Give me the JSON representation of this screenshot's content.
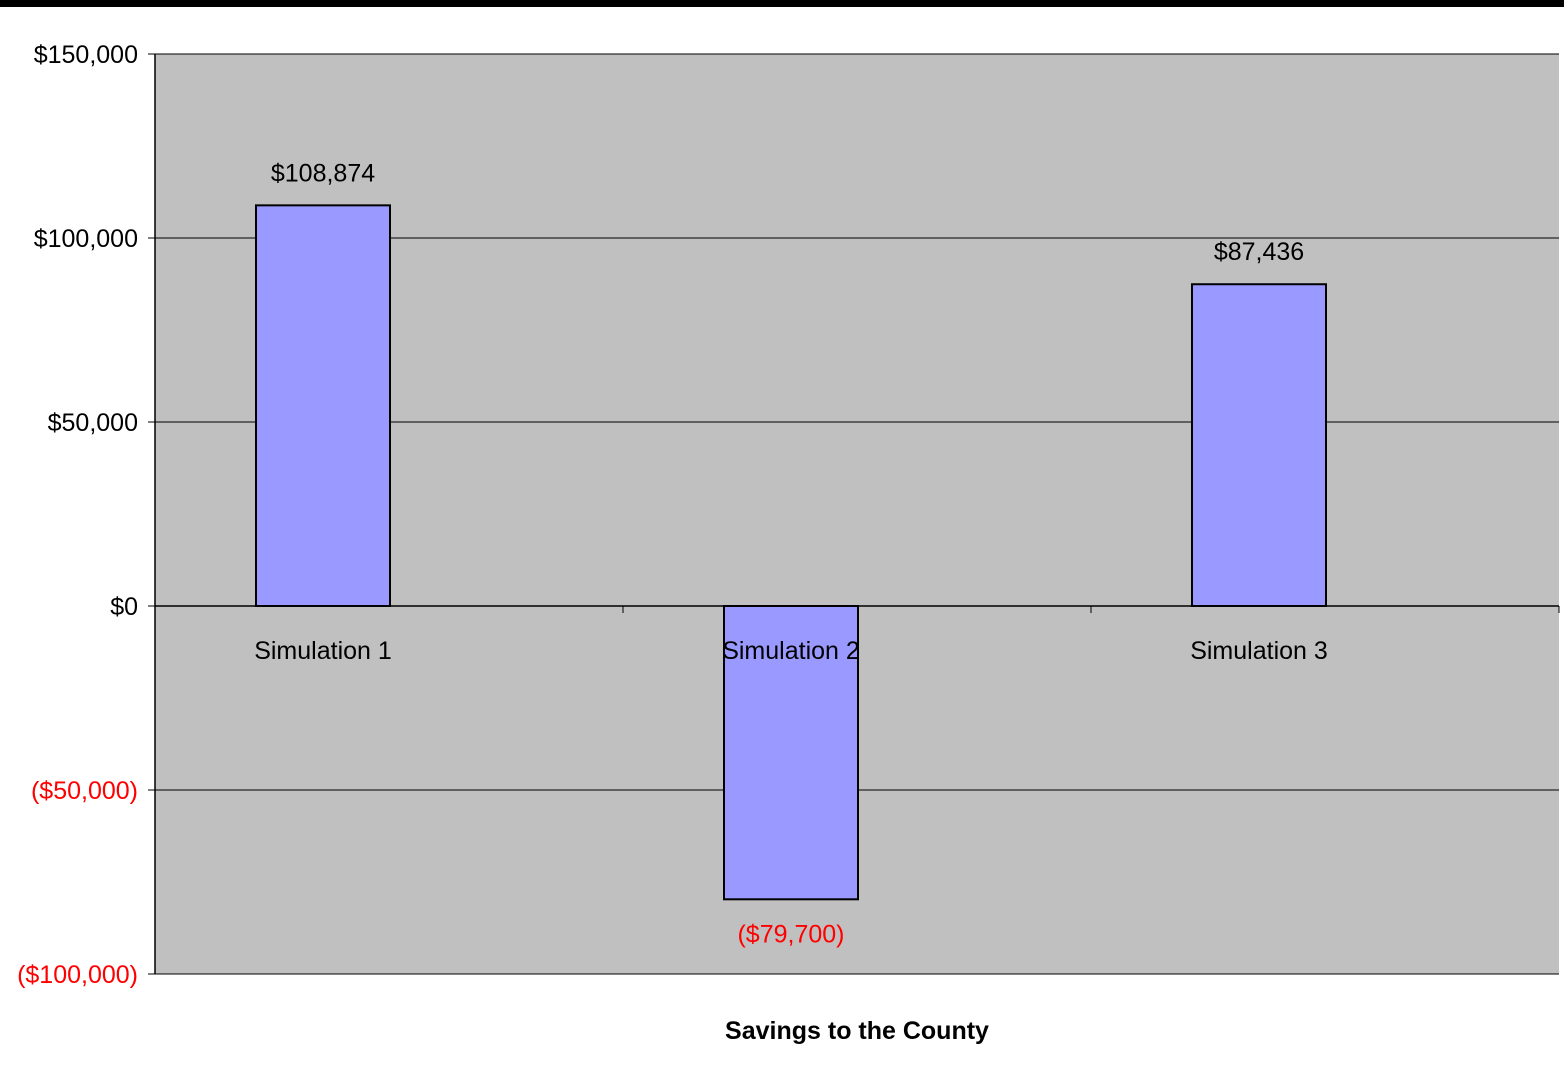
{
  "chart_data": {
    "type": "bar",
    "categories": [
      "Simulation 1",
      "Simulation 2",
      "Simulation 3"
    ],
    "values": [
      108874,
      -79700,
      87436
    ],
    "data_labels": [
      "$108,874",
      "($79,700)",
      "$87,436"
    ],
    "xlabel": "Savings to the County",
    "ylabel": "",
    "ylim": [
      -100000,
      150000
    ],
    "yticks": [
      150000,
      100000,
      50000,
      0,
      -50000,
      -100000
    ],
    "ytick_labels": [
      "$150,000",
      "$100,000",
      "$50,000",
      "$0",
      "($50,000)",
      "($100,000)"
    ],
    "grid": true,
    "legend": "none",
    "colors": {
      "bar_fill": "#9999ff",
      "bar_stroke": "#000000",
      "plot_background": "#c0c0c0",
      "positive_text": "#000000",
      "negative_text": "#ff0000",
      "top_border": "#000000"
    }
  }
}
